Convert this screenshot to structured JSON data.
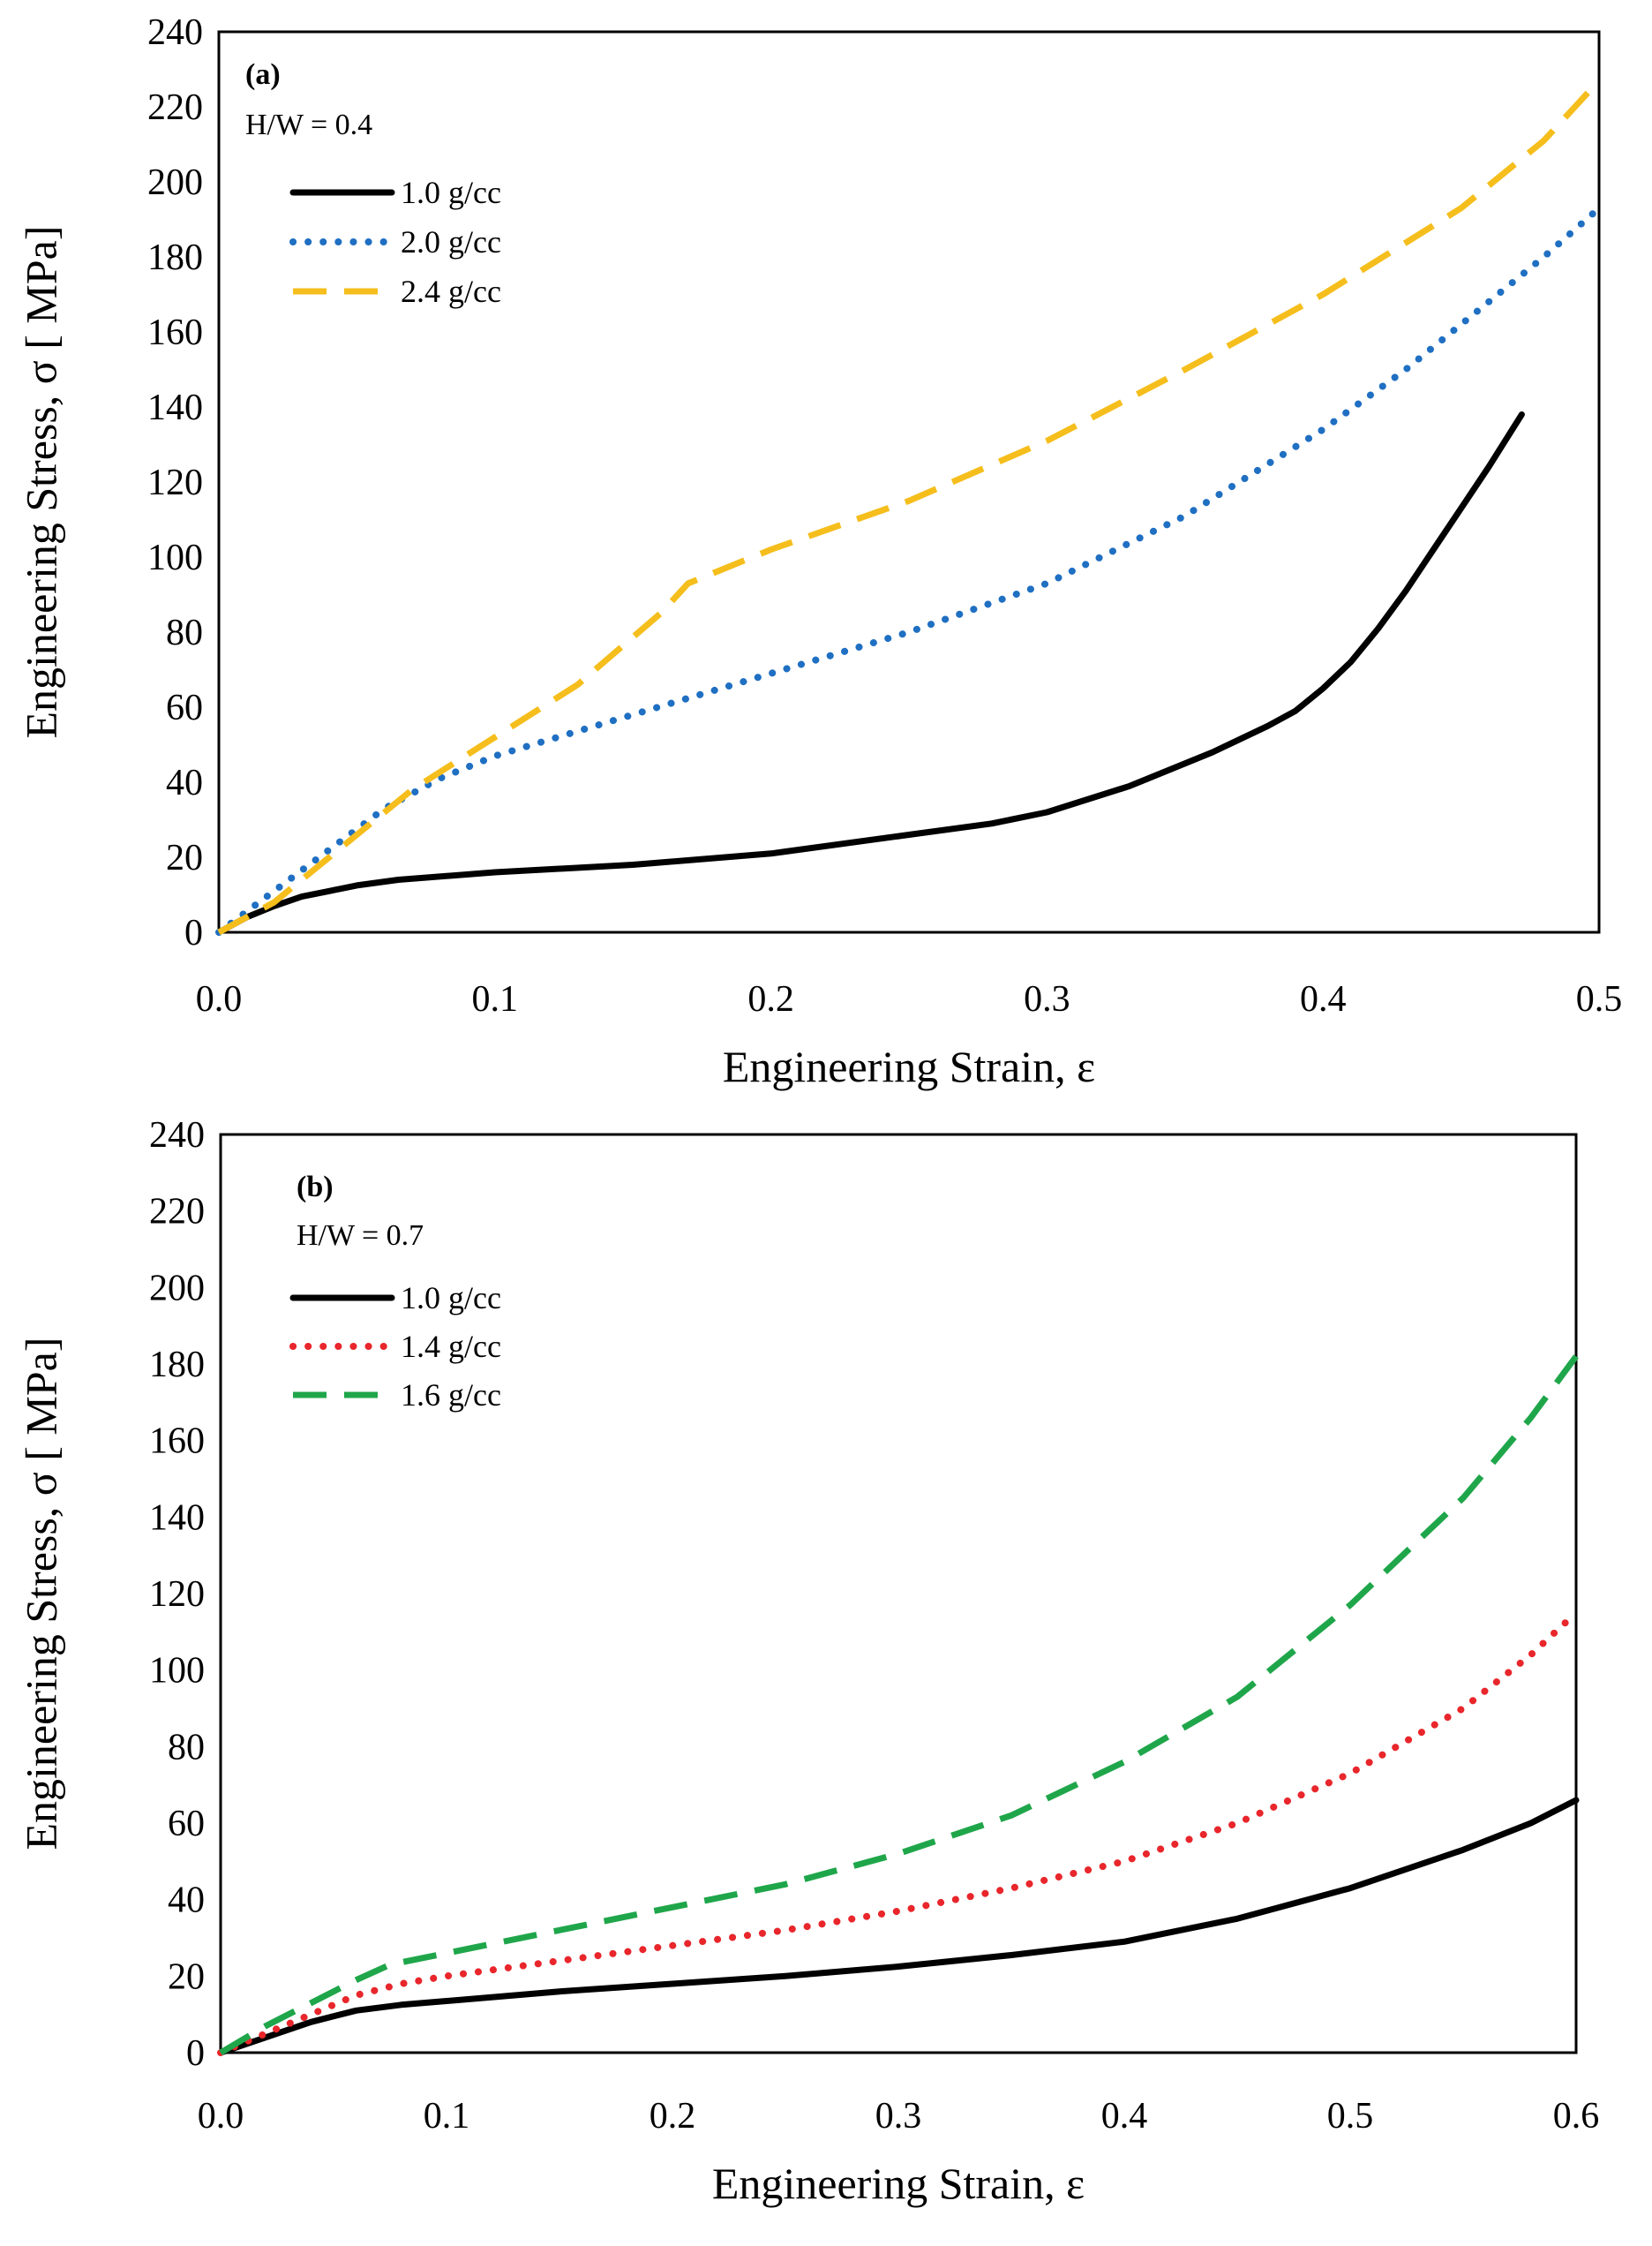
{
  "chart_data": [
    {
      "type": "line",
      "panel_label": "(a)",
      "annotation": "H/W = 0.4",
      "xlabel": "Engineering Strain, ε",
      "ylabel": "Engineering Stress, σ [ MPa]",
      "xlim": [
        0,
        0.5
      ],
      "ylim": [
        0,
        240
      ],
      "xticks": [
        "0.0",
        "0.1",
        "0.2",
        "0.3",
        "0.4",
        "0.5"
      ],
      "yticks": [
        "0",
        "20",
        "40",
        "60",
        "80",
        "100",
        "120",
        "140",
        "160",
        "180",
        "200",
        "220",
        "240"
      ],
      "legend_position": "top-left",
      "series": [
        {
          "name": "1.0 g/cc",
          "color": "#000000",
          "style": "solid",
          "x": [
            0,
            0.01,
            0.02,
            0.03,
            0.04,
            0.05,
            0.065,
            0.1,
            0.15,
            0.2,
            0.25,
            0.28,
            0.3,
            0.33,
            0.36,
            0.38,
            0.39,
            0.4,
            0.41,
            0.42,
            0.43,
            0.44,
            0.45,
            0.46,
            0.472
          ],
          "values": [
            0,
            4,
            7,
            9.5,
            11,
            12.5,
            14,
            16,
            18,
            21,
            26,
            29,
            32,
            39,
            48,
            55,
            59,
            65,
            72,
            81,
            91,
            102,
            113,
            124,
            138
          ]
        },
        {
          "name": "2.0 g/cc",
          "color": "#1f6fc2",
          "style": "dotted",
          "x": [
            0,
            0.02,
            0.04,
            0.06,
            0.08,
            0.1,
            0.15,
            0.2,
            0.25,
            0.3,
            0.35,
            0.4,
            0.43,
            0.46,
            0.48,
            0.5
          ],
          "values": [
            0,
            11,
            22,
            33,
            41,
            47,
            58,
            69,
            80,
            93,
            111,
            134,
            150,
            168,
            180,
            193
          ]
        },
        {
          "name": "2.4 g/cc",
          "color": "#f5be1c",
          "style": "dashed",
          "x": [
            0,
            0.02,
            0.04,
            0.07,
            0.1,
            0.13,
            0.16,
            0.17,
            0.2,
            0.25,
            0.3,
            0.35,
            0.4,
            0.45,
            0.48,
            0.5
          ],
          "values": [
            0,
            8,
            20,
            38,
            52,
            66,
            85,
            93,
            102,
            115,
            131,
            150,
            170,
            193,
            211,
            227
          ]
        }
      ]
    },
    {
      "type": "line",
      "panel_label": "(b)",
      "annotation": "H/W = 0.7",
      "xlabel": "Engineering Strain, ε",
      "ylabel": "Engineering Stress, σ [ MPa]",
      "xlim": [
        0,
        0.6
      ],
      "ylim": [
        0,
        240
      ],
      "xticks": [
        "0.0",
        "0.1",
        "0.2",
        "0.3",
        "0.4",
        "0.5",
        "0.6"
      ],
      "yticks": [
        "0",
        "20",
        "40",
        "60",
        "80",
        "100",
        "120",
        "140",
        "160",
        "180",
        "200",
        "220",
        "240"
      ],
      "legend_position": "top-left",
      "series": [
        {
          "name": "1.0 g/cc",
          "color": "#000000",
          "style": "solid",
          "x": [
            0,
            0.02,
            0.04,
            0.06,
            0.08,
            0.1,
            0.15,
            0.2,
            0.25,
            0.3,
            0.35,
            0.4,
            0.45,
            0.5,
            0.55,
            0.58,
            0.6
          ],
          "values": [
            0,
            4,
            8,
            11,
            12.5,
            13.5,
            16,
            18,
            20,
            22.5,
            25.5,
            29,
            35,
            43,
            53,
            60,
            66
          ]
        },
        {
          "name": "1.4 g/cc",
          "color": "#e8262b",
          "style": "dotted",
          "x": [
            0,
            0.02,
            0.04,
            0.06,
            0.08,
            0.1,
            0.15,
            0.2,
            0.25,
            0.3,
            0.35,
            0.4,
            0.45,
            0.5,
            0.55,
            0.58,
            0.6
          ],
          "values": [
            0,
            5,
            10,
            15,
            18,
            20,
            24,
            28,
            32,
            37,
            43,
            50,
            60,
            73,
            90,
            104,
            115
          ]
        },
        {
          "name": "1.6 g/cc",
          "color": "#1fa64a",
          "style": "dashed",
          "x": [
            0,
            0.02,
            0.04,
            0.06,
            0.075,
            0.1,
            0.15,
            0.2,
            0.25,
            0.3,
            0.35,
            0.4,
            0.45,
            0.5,
            0.55,
            0.58,
            0.6
          ],
          "values": [
            0,
            7,
            13,
            19,
            23,
            26,
            32,
            38,
            44,
            52,
            62,
            76,
            93,
            117,
            145,
            166,
            182
          ]
        }
      ]
    }
  ]
}
